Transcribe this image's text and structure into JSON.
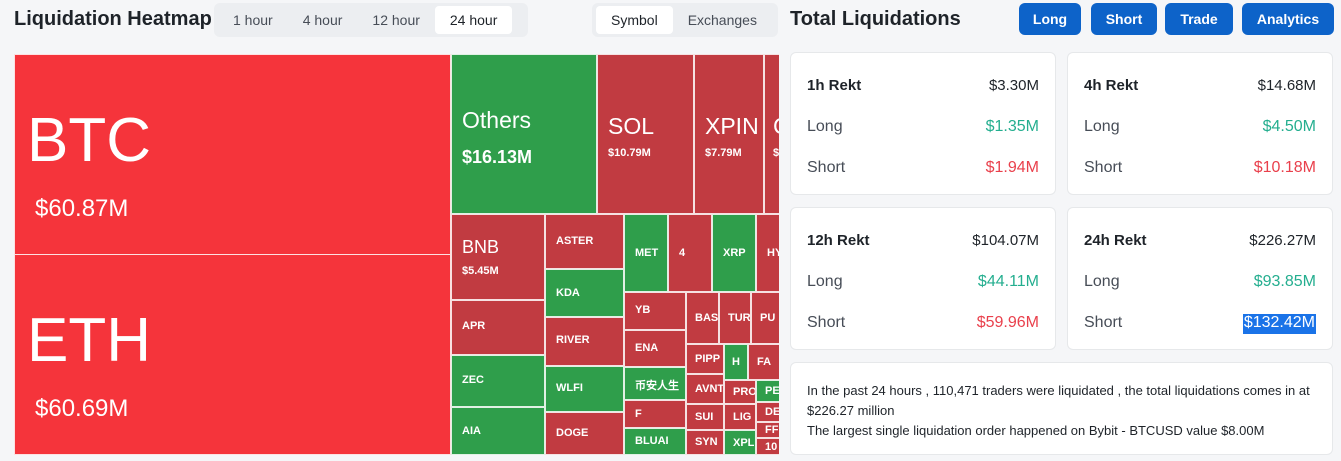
{
  "heatmap": {
    "title": "Liquidation Heatmap",
    "time_tabs": [
      "1 hour",
      "4 hour",
      "12 hour",
      "24 hour"
    ],
    "active_time": "24 hour",
    "view_tabs": [
      "Symbol",
      "Exchanges"
    ],
    "tiles": {
      "btc": {
        "name": "BTC",
        "value": "$60.87M"
      },
      "eth": {
        "name": "ETH",
        "value": "$60.69M"
      },
      "others": {
        "name": "Others",
        "value": "$16.13M"
      },
      "sol": {
        "name": "SOL",
        "value": "$10.79M"
      },
      "xpin": {
        "name": "XPIN",
        "value": "$7.79M"
      },
      "clip1": {
        "name": "C",
        "value": "$"
      },
      "bnb": {
        "name": "BNB",
        "value": "$5.45M"
      },
      "aster": "ASTER",
      "met": "MET",
      "four": "4",
      "xrp": "XRP",
      "hy": "HY",
      "kda": "KDA",
      "apr": "APR",
      "river": "RIVER",
      "yb": "YB",
      "bas": "BAS",
      "tur": "TUR",
      "pu": "PU",
      "ena": "ENA",
      "zec": "ZEC",
      "wlfi": "WLFI",
      "binance": "币安人生",
      "pipp": "PIPP",
      "h": "H",
      "fa": "FA",
      "avnt": "AVNT",
      "pro": "PRO",
      "pe": "PE",
      "f": "F",
      "aia": "AIA",
      "doge": "DOGE",
      "sui": "SUI",
      "lig": "LIG",
      "de": "DE",
      "ff": "FF",
      "bluai": "BLUAI",
      "syn": "SYN",
      "xpl": "XPL",
      "ten": "10"
    }
  },
  "totals": {
    "title": "Total Liquidations",
    "buttons": [
      "Long",
      "Short",
      "Trade",
      "Analytics"
    ],
    "cards": [
      {
        "label": "1h Rekt",
        "total": "$3.30M",
        "long_label": "Long",
        "long": "$1.35M",
        "short_label": "Short",
        "short": "$1.94M"
      },
      {
        "label": "4h Rekt",
        "total": "$14.68M",
        "long_label": "Long",
        "long": "$4.50M",
        "short_label": "Short",
        "short": "$10.18M"
      },
      {
        "label": "12h Rekt",
        "total": "$104.07M",
        "long_label": "Long",
        "long": "$44.11M",
        "short_label": "Short",
        "short": "$59.96M"
      },
      {
        "label": "24h Rekt",
        "total": "$226.27M",
        "long_label": "Long",
        "long": "$93.85M",
        "short_label": "Short",
        "short": "$132.42M"
      }
    ],
    "summary_line1": "In the past 24 hours , 110,471 traders were liquidated , the total liquidations comes in at $226.27 million",
    "summary_line2": "The largest single liquidation order happened on Bybit - BTCUSD value $8.00M"
  },
  "colors": {
    "red": "#f5343b",
    "dark_red": "#c13b41",
    "green": "#2f9e4b",
    "button": "#0d63c9"
  }
}
